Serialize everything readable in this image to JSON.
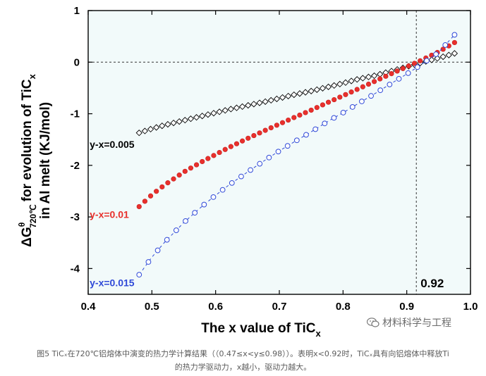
{
  "chart_data": {
    "type": "scatter",
    "title": "",
    "xlabel_main": "The x value of TiC",
    "xlabel_sub": "x",
    "ylabel_line1": "for evolution of TiC",
    "ylabel_line1_sub": "x",
    "ylabel_prefix": "ΔG",
    "ylabel_sup": "θ",
    "ylabel_sub": "720℃",
    "ylabel_line2": "in Al melt (KJ/mol)",
    "xlim": [
      0.4,
      1.0
    ],
    "ylim": [
      -4.5,
      1.0
    ],
    "xticks": [
      "0.4",
      "0.5",
      "0.6",
      "0.7",
      "0.8",
      "0.9",
      "1.0"
    ],
    "yticks": [
      "1",
      "0",
      "-1",
      "-2",
      "-3",
      "-4"
    ],
    "ytick_values": [
      1,
      0,
      -1,
      -2,
      -3,
      -4
    ],
    "xtick_values": [
      0.4,
      0.5,
      0.6,
      0.7,
      0.8,
      0.9,
      1.0
    ],
    "reference_lines": {
      "x": 0.915,
      "y": 0,
      "label": "0.92"
    },
    "grid": false,
    "background_color": "#f2fafa",
    "series": [
      {
        "name": "y-x=0.005",
        "color": "#000000",
        "marker": "diamond-open",
        "line": "none",
        "x": [
          0.48,
          0.5,
          0.52,
          0.55,
          0.58,
          0.6,
          0.62,
          0.65,
          0.68,
          0.7,
          0.72,
          0.75,
          0.78,
          0.8,
          0.82,
          0.85,
          0.88,
          0.9,
          0.92,
          0.95,
          0.975
        ],
        "y": [
          -1.37,
          -1.29,
          -1.22,
          -1.13,
          -1.04,
          -0.98,
          -0.92,
          -0.84,
          -0.76,
          -0.7,
          -0.64,
          -0.56,
          -0.47,
          -0.41,
          -0.34,
          -0.26,
          -0.16,
          -0.09,
          -0.02,
          0.08,
          0.17
        ]
      },
      {
        "name": "y-x=0.01",
        "color": "#e8302c",
        "marker": "star-filled",
        "line": "none",
        "x": [
          0.48,
          0.5,
          0.52,
          0.55,
          0.58,
          0.6,
          0.62,
          0.65,
          0.68,
          0.7,
          0.72,
          0.75,
          0.78,
          0.8,
          0.82,
          0.85,
          0.88,
          0.9,
          0.92,
          0.95,
          0.975
        ],
        "y": [
          -2.8,
          -2.57,
          -2.38,
          -2.13,
          -1.92,
          -1.79,
          -1.66,
          -1.48,
          -1.31,
          -1.2,
          -1.09,
          -0.93,
          -0.76,
          -0.65,
          -0.54,
          -0.37,
          -0.2,
          -0.09,
          0.02,
          0.2,
          0.38
        ]
      },
      {
        "name": "y-x=0.015",
        "color": "#2f49d8",
        "marker": "circle-open",
        "line": "dashed",
        "x": [
          0.48,
          0.5,
          0.52,
          0.55,
          0.58,
          0.6,
          0.62,
          0.65,
          0.68,
          0.7,
          0.72,
          0.75,
          0.78,
          0.8,
          0.82,
          0.85,
          0.88,
          0.9,
          0.92,
          0.95,
          0.975
        ],
        "y": [
          -4.12,
          -3.78,
          -3.49,
          -3.11,
          -2.78,
          -2.58,
          -2.39,
          -2.13,
          -1.88,
          -1.72,
          -1.57,
          -1.35,
          -1.12,
          -0.98,
          -0.83,
          -0.61,
          -0.38,
          -0.23,
          -0.07,
          0.19,
          0.53
        ]
      }
    ]
  },
  "caption": {
    "line1": "图5 TiCₓ在720℃铝熔体中演变的热力学计算结果（（0.47≤x<y≤0.98））。表明x<0.92时，TiCₓ具有向铝熔体中释放Ti",
    "line2": "的热力学驱动力，x越小，驱动力越大。"
  },
  "watermark": {
    "text": "材料科学与工程",
    "icon": "wechat-icon"
  }
}
